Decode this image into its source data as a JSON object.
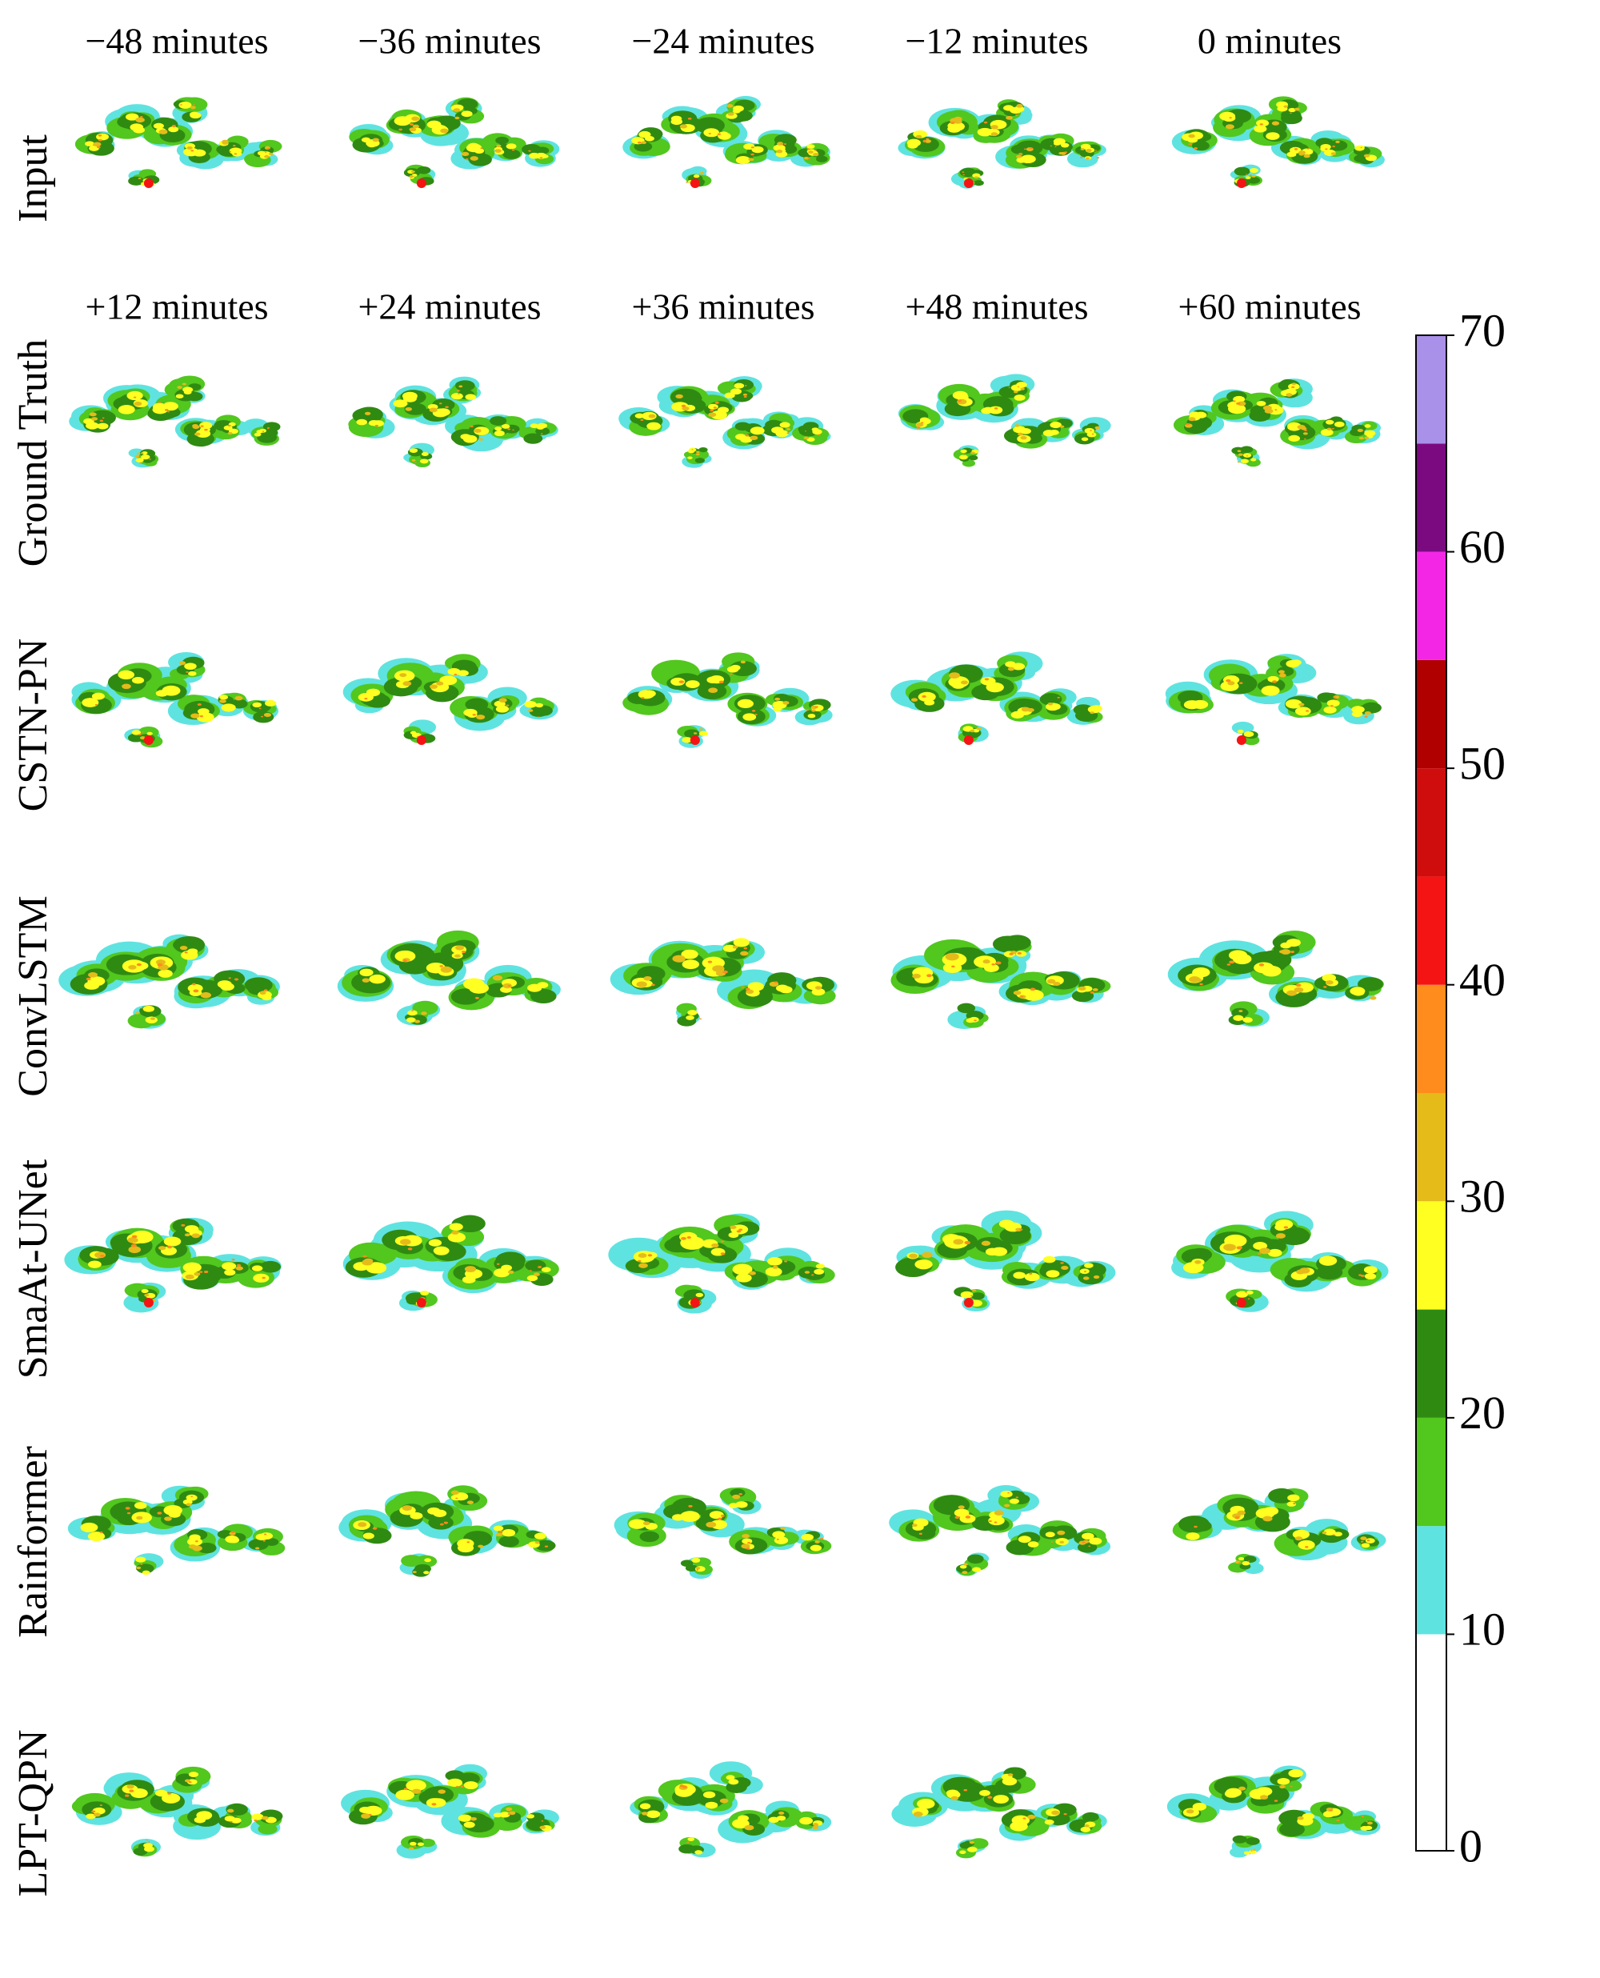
{
  "header": {
    "input_columns": [
      "−48 minutes",
      "−36 minutes",
      "−24 minutes",
      "−12 minutes",
      "0 minutes"
    ],
    "output_columns": [
      "+12 minutes",
      "+24 minutes",
      "+36 minutes",
      "+48 minutes",
      "+60 minutes"
    ]
  },
  "rows": [
    "Input",
    "Ground Truth",
    "CSTN-PN",
    "ConvLSTM",
    "SmaAt-UNet",
    "Rainformer",
    "LPT-QPN"
  ],
  "colorbar": {
    "lim": [
      0,
      70
    ],
    "ticks": [
      0,
      10,
      20,
      30,
      40,
      50,
      60,
      70
    ],
    "bounds": [
      0,
      10,
      15,
      20,
      25,
      30,
      35,
      40,
      45,
      50,
      55,
      60,
      65,
      70
    ],
    "colors": [
      "#ffffff",
      "#5fe3e0",
      "#52c71e",
      "#2f8a12",
      "#ffff22",
      "#e5bb1a",
      "#ff8c1c",
      "#f41414",
      "#d00d0d",
      "#b00000",
      "#f426e6",
      "#7b0a80",
      "#a990e8"
    ]
  }
}
